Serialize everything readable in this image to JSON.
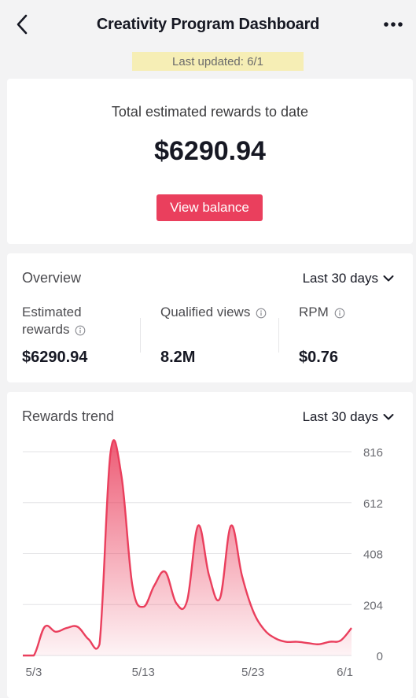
{
  "header": {
    "title": "Creativity Program Dashboard"
  },
  "last_updated": "Last updated: 6/1",
  "total": {
    "label": "Total estimated rewards to date",
    "value": "$6290.94",
    "button_label": "View balance"
  },
  "overview": {
    "title": "Overview",
    "range": "Last 30 days",
    "metrics": [
      {
        "label_line1": "Estimated",
        "label_line2": "rewards",
        "value": "$6290.94"
      },
      {
        "label_line1": "Qualified views",
        "value": "8.2M"
      },
      {
        "label_line1": "RPM",
        "value": "$0.76"
      }
    ]
  },
  "trend": {
    "title": "Rewards trend",
    "range": "Last 30 days"
  },
  "colors": {
    "accent": "#ea3f5d",
    "highlight": "#f6eeb5"
  },
  "chart_data": {
    "type": "area",
    "title": "Rewards trend",
    "y_ticks": [
      "816",
      "612",
      "408",
      "204",
      "0"
    ],
    "x_ticks": [
      "5/3",
      "5/13",
      "5/23",
      "6/1"
    ],
    "ylim": [
      0,
      816
    ],
    "grid": true,
    "series": [
      {
        "x": [
          "5/2",
          "5/3",
          "5/4",
          "5/5",
          "5/6",
          "5/7",
          "5/8",
          "5/9",
          "5/10",
          "5/11",
          "5/12",
          "5/13",
          "5/14",
          "5/15",
          "5/16",
          "5/17",
          "5/18",
          "5/19",
          "5/20",
          "5/21",
          "5/22",
          "5/23",
          "5/24",
          "5/25",
          "5/26",
          "5/27",
          "5/28",
          "5/29",
          "5/30",
          "5/31",
          "6/1"
        ],
        "values": [
          0,
          0,
          115,
          95,
          110,
          115,
          65,
          45,
          810,
          720,
          280,
          195,
          280,
          335,
          210,
          220,
          520,
          320,
          230,
          520,
          320,
          180,
          105,
          70,
          55,
          55,
          50,
          45,
          55,
          60,
          110
        ]
      }
    ]
  }
}
